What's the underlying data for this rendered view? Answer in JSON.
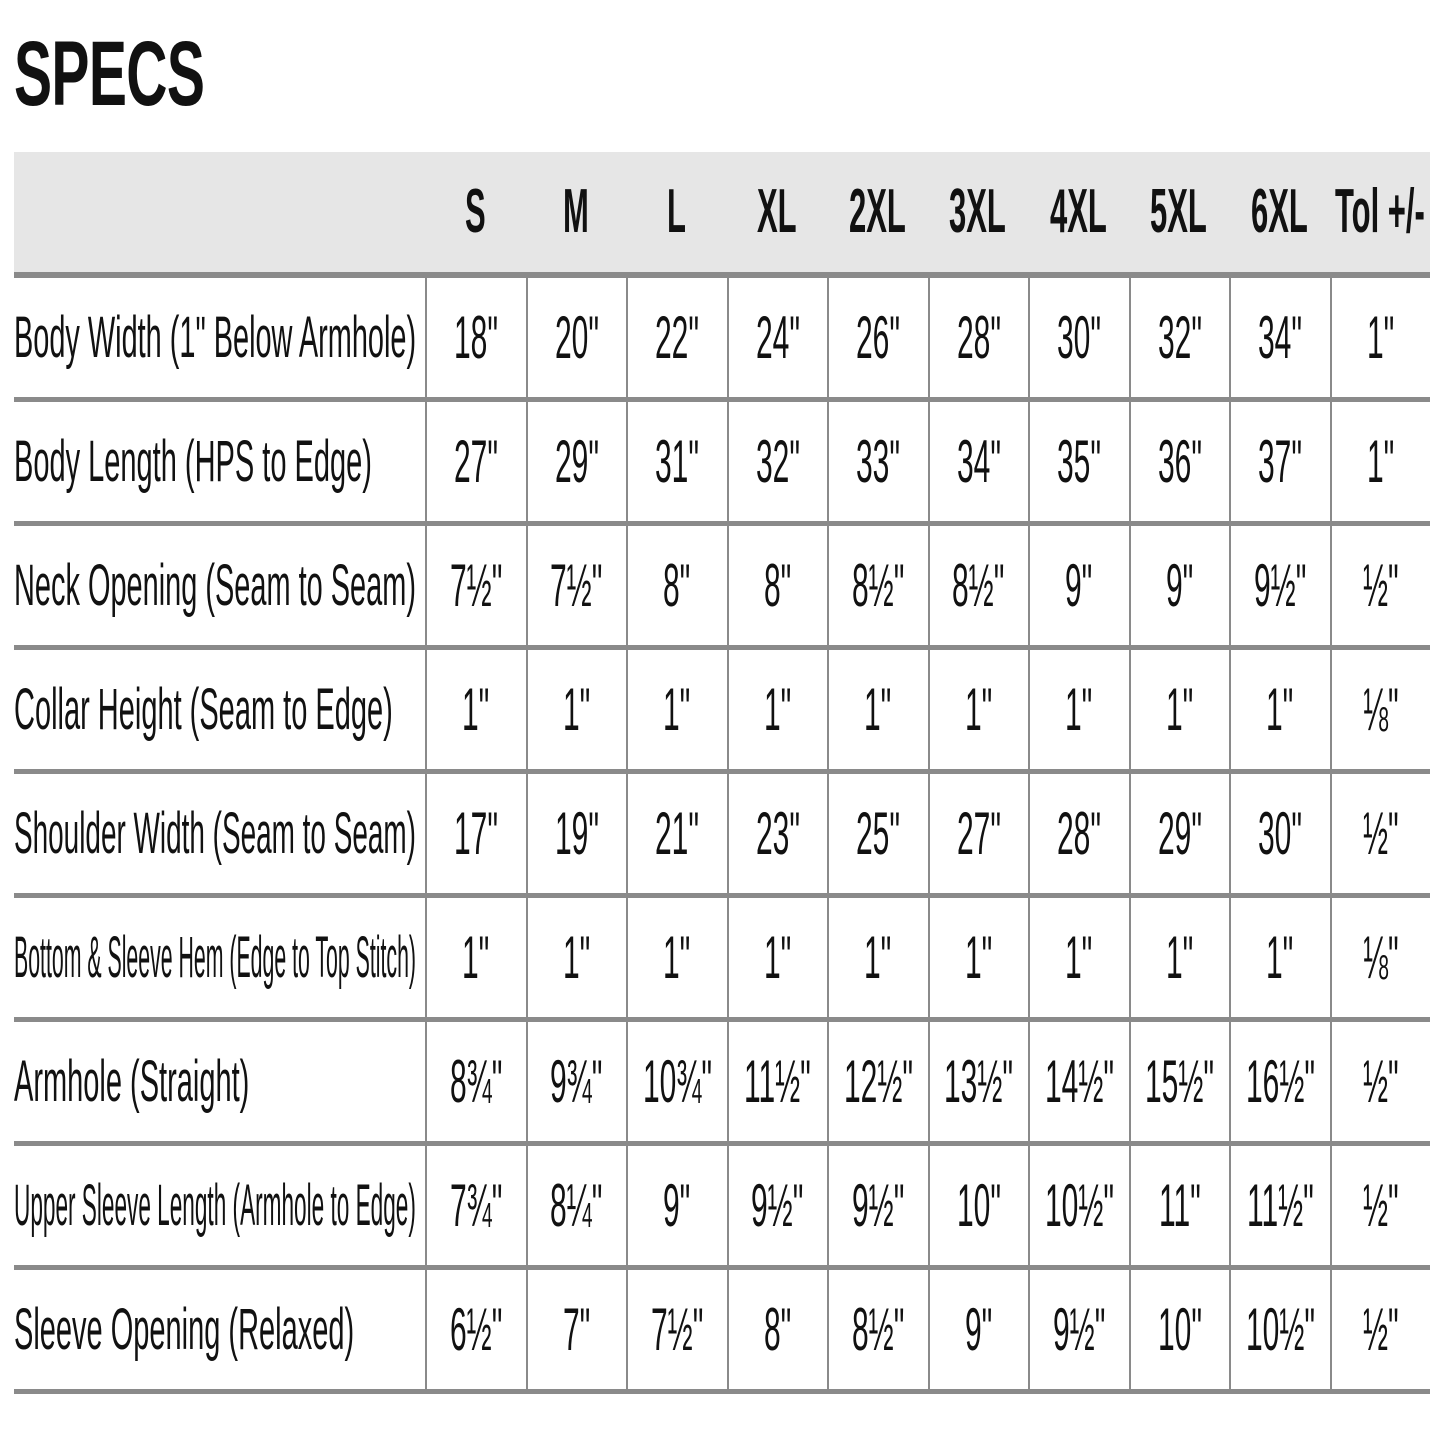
{
  "title": "SPECS",
  "columns": [
    "S",
    "M",
    "L",
    "XL",
    "2XL",
    "3XL",
    "4XL",
    "5XL",
    "6XL",
    "Tol +/-"
  ],
  "rows": [
    {
      "label": "Body Width (1\" Below Armhole)",
      "values": [
        "18\"",
        "20\"",
        "22\"",
        "24\"",
        "26\"",
        "28\"",
        "30\"",
        "32\"",
        "34\"",
        "1\""
      ]
    },
    {
      "label": "Body Length (HPS to Edge)",
      "values": [
        "27\"",
        "29\"",
        "31\"",
        "32\"",
        "33\"",
        "34\"",
        "35\"",
        "36\"",
        "37\"",
        "1\""
      ]
    },
    {
      "label": "Neck Opening (Seam to Seam)",
      "values": [
        "7½\"",
        "7½\"",
        "8\"",
        "8\"",
        "8½\"",
        "8½\"",
        "9\"",
        "9\"",
        "9½\"",
        "½\""
      ]
    },
    {
      "label": "Collar Height (Seam to Edge)",
      "values": [
        "1\"",
        "1\"",
        "1\"",
        "1\"",
        "1\"",
        "1\"",
        "1\"",
        "1\"",
        "1\"",
        "⅛\""
      ]
    },
    {
      "label": "Shoulder Width (Seam to Seam)",
      "values": [
        "17\"",
        "19\"",
        "21\"",
        "23\"",
        "25\"",
        "27\"",
        "28\"",
        "29\"",
        "30\"",
        "½\""
      ]
    },
    {
      "label": "Bottom & Sleeve Hem (Edge to Top Stitch)",
      "values": [
        "1\"",
        "1\"",
        "1\"",
        "1\"",
        "1\"",
        "1\"",
        "1\"",
        "1\"",
        "1\"",
        "⅛\""
      ]
    },
    {
      "label": "Armhole (Straight)",
      "values": [
        "8¾\"",
        "9¾\"",
        "10¾\"",
        "11½\"",
        "12½\"",
        "13½\"",
        "14½\"",
        "15½\"",
        "16½\"",
        "½\""
      ]
    },
    {
      "label": "Upper Sleeve Length (Armhole to Edge)",
      "values": [
        "7¾\"",
        "8¼\"",
        "9\"",
        "9½\"",
        "9½\"",
        "10\"",
        "10½\"",
        "11\"",
        "11½\"",
        "½\""
      ]
    },
    {
      "label": "Sleeve Opening (Relaxed)",
      "values": [
        "6½\"",
        "7\"",
        "7½\"",
        "8\"",
        "8½\"",
        "9\"",
        "9½\"",
        "10\"",
        "10½\"",
        "½\""
      ]
    }
  ]
}
